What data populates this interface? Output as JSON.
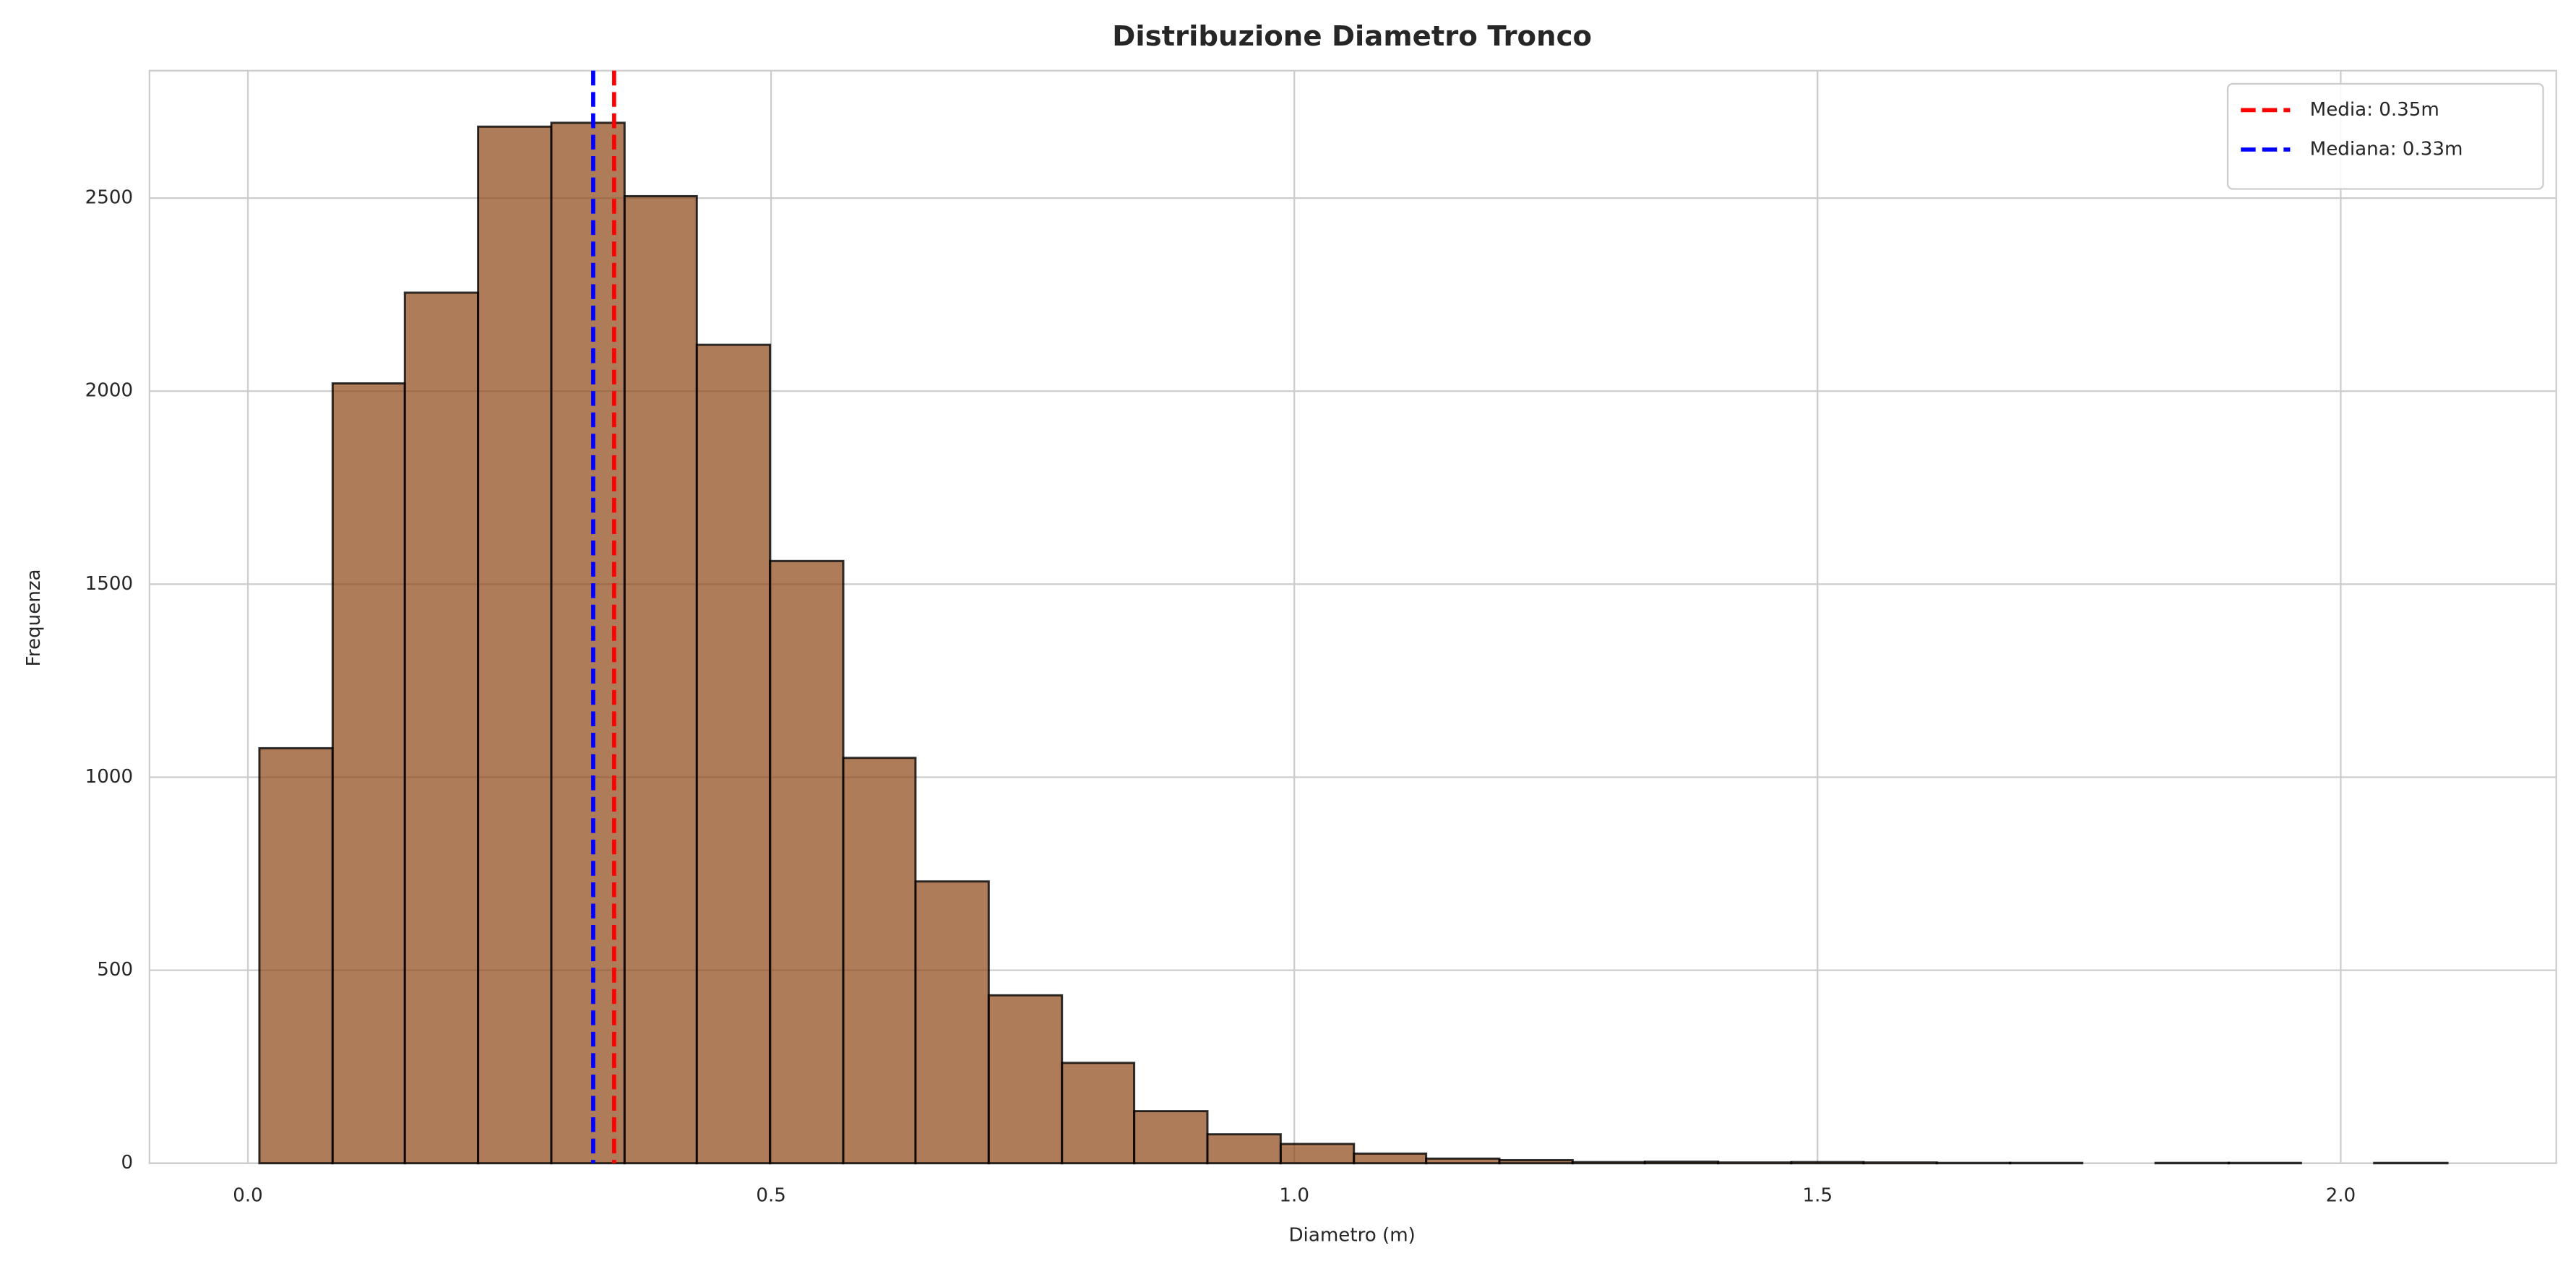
{
  "chart_data": {
    "type": "histogram",
    "title": "Distribuzione Diametro Tronco",
    "xlabel": "Diametro (m)",
    "ylabel": "Frequenza",
    "bins": [
      0.011,
      0.081,
      0.15,
      0.22,
      0.29,
      0.36,
      0.429,
      0.499,
      0.569,
      0.638,
      0.708,
      0.778,
      0.847,
      0.917,
      0.987,
      1.057,
      1.126,
      1.196,
      1.266,
      1.335,
      1.405,
      1.475,
      1.544,
      1.614,
      1.684,
      1.753,
      1.823,
      1.893,
      1.962,
      2.032,
      2.102
    ],
    "counts": [
      1075,
      2020,
      2255,
      2685,
      2695,
      2505,
      2120,
      1560,
      1050,
      730,
      435,
      260,
      135,
      75,
      50,
      25,
      12,
      8,
      3,
      4,
      2,
      3,
      2,
      1,
      1,
      0,
      1,
      1,
      0,
      1
    ],
    "color": "#8b4513",
    "edgecolor": "#000000",
    "reference_lines": [
      {
        "name": "Media: 0.35m",
        "value": 0.35,
        "color": "#ff0000"
      },
      {
        "name": "Mediana: 0.33m",
        "value": 0.33,
        "color": "#0000ff"
      }
    ],
    "xlim": [
      -0.094,
      2.206
    ],
    "ylim": [
      0,
      2830
    ],
    "xticks": [
      {
        "value": 0,
        "label": "0.0"
      },
      0.5,
      {
        "value": 1,
        "label": "1.0"
      },
      1.5,
      {
        "value": 2,
        "label": "2.0"
      }
    ],
    "yticks": [
      0,
      500,
      1000,
      1500,
      2000,
      2500
    ],
    "grid": true,
    "legend": "upper right"
  }
}
